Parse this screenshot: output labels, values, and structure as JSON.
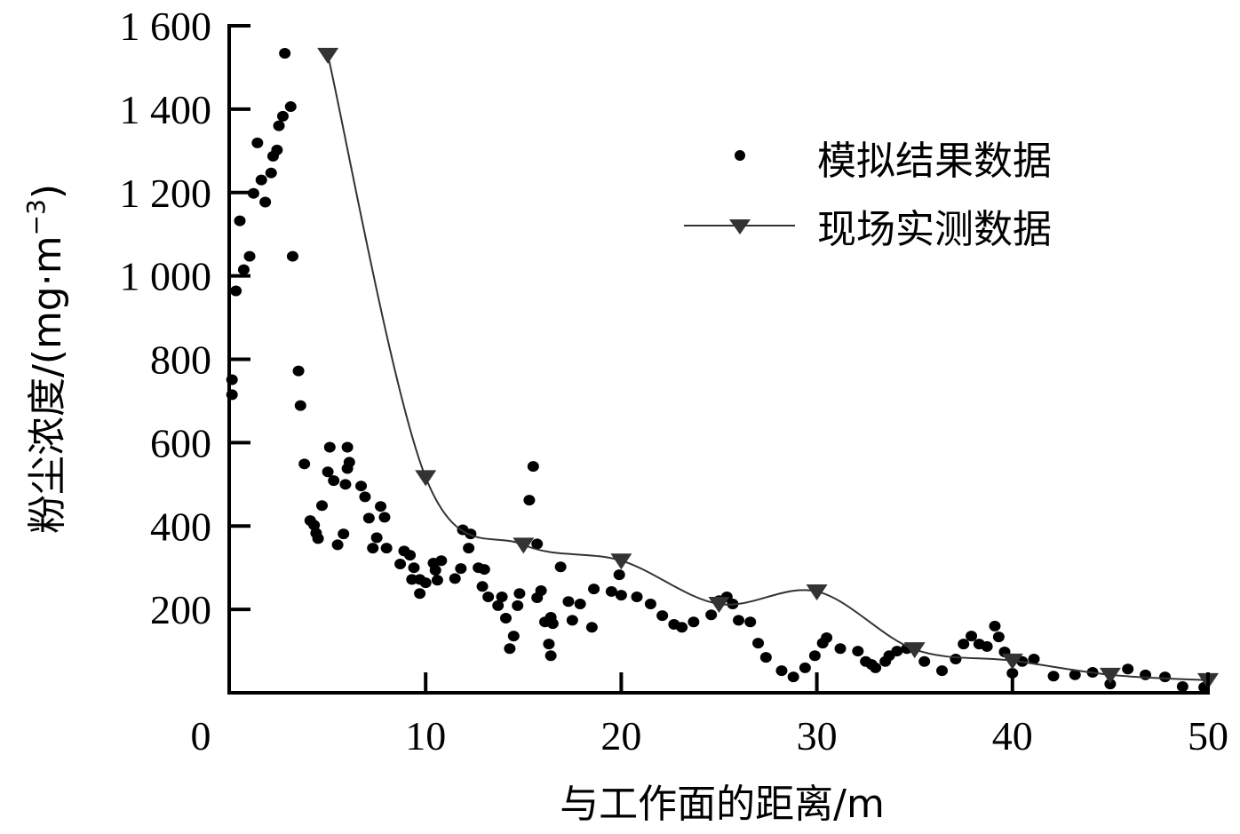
{
  "chart_data": {
    "type": "scatter",
    "title": "",
    "xlabel": "与工作面的距离/m",
    "ylabel": "粉尘浓度/(mg·m⁻³)",
    "xlim": [
      0,
      50
    ],
    "ylim": [
      0,
      1600
    ],
    "xticks": [
      0,
      10,
      20,
      30,
      40,
      50
    ],
    "xtick_labels": [
      "0",
      "10",
      "20",
      "30",
      "40",
      "50"
    ],
    "yticks": [
      200,
      400,
      600,
      800,
      1000,
      1200,
      1400,
      1600
    ],
    "ytick_labels": [
      "200",
      "400",
      "600",
      "800",
      "1 000",
      "1 200",
      "1 400",
      "1 600"
    ],
    "grid": false,
    "legend_position": "upper right",
    "series": [
      {
        "name": "模拟结果数据",
        "style": "scatter",
        "marker": "circle",
        "color": "#000000",
        "points": [
          [
            0.1,
            751
          ],
          [
            0.1,
            715
          ],
          [
            0.3,
            964
          ],
          [
            0.5,
            1132
          ],
          [
            0.7,
            1015
          ],
          [
            1.0,
            1047
          ],
          [
            1.2,
            1198
          ],
          [
            1.4,
            1319
          ],
          [
            1.6,
            1230
          ],
          [
            1.8,
            1177
          ],
          [
            2.1,
            1247
          ],
          [
            2.2,
            1287
          ],
          [
            2.4,
            1302
          ],
          [
            2.5,
            1360
          ],
          [
            2.7,
            1383
          ],
          [
            2.8,
            1534
          ],
          [
            3.1,
            1406
          ],
          [
            3.2,
            1047
          ],
          [
            3.5,
            772
          ],
          [
            3.6,
            689
          ],
          [
            3.8,
            549
          ],
          [
            4.1,
            413
          ],
          [
            4.3,
            402
          ],
          [
            4.4,
            383
          ],
          [
            4.5,
            370
          ],
          [
            4.7,
            449
          ],
          [
            5.0,
            530
          ],
          [
            5.1,
            589
          ],
          [
            5.3,
            509
          ],
          [
            5.5,
            355
          ],
          [
            5.8,
            381
          ],
          [
            5.9,
            500
          ],
          [
            6.0,
            589
          ],
          [
            6.0,
            538
          ],
          [
            6.1,
            553
          ],
          [
            6.7,
            496
          ],
          [
            6.9,
            470
          ],
          [
            7.1,
            419
          ],
          [
            7.3,
            347
          ],
          [
            7.5,
            372
          ],
          [
            7.7,
            447
          ],
          [
            7.9,
            421
          ],
          [
            8.0,
            347
          ],
          [
            8.7,
            309
          ],
          [
            8.9,
            340
          ],
          [
            9.2,
            330
          ],
          [
            9.3,
            272
          ],
          [
            9.4,
            300
          ],
          [
            9.7,
            272
          ],
          [
            9.7,
            238
          ],
          [
            10.0,
            264
          ],
          [
            10.4,
            311
          ],
          [
            10.5,
            294
          ],
          [
            10.6,
            270
          ],
          [
            10.8,
            317
          ],
          [
            11.5,
            274
          ],
          [
            11.8,
            298
          ],
          [
            11.9,
            391
          ],
          [
            12.2,
            347
          ],
          [
            12.3,
            381
          ],
          [
            12.7,
            300
          ],
          [
            12.9,
            255
          ],
          [
            13.0,
            296
          ],
          [
            13.2,
            230
          ],
          [
            13.7,
            209
          ],
          [
            13.9,
            230
          ],
          [
            14.1,
            179
          ],
          [
            14.3,
            106
          ],
          [
            14.5,
            136
          ],
          [
            14.7,
            209
          ],
          [
            14.8,
            238
          ],
          [
            15.3,
            462
          ],
          [
            15.5,
            543
          ],
          [
            15.7,
            357
          ],
          [
            15.7,
            228
          ],
          [
            15.9,
            245
          ],
          [
            16.1,
            170
          ],
          [
            16.3,
            117
          ],
          [
            16.4,
            89
          ],
          [
            16.4,
            181
          ],
          [
            16.5,
            166
          ],
          [
            16.9,
            302
          ],
          [
            17.3,
            219
          ],
          [
            17.5,
            174
          ],
          [
            17.9,
            213
          ],
          [
            18.5,
            157
          ],
          [
            18.6,
            249
          ],
          [
            19.5,
            243
          ],
          [
            19.9,
            283
          ],
          [
            20.0,
            234
          ],
          [
            20.8,
            230
          ],
          [
            21.5,
            213
          ],
          [
            22.1,
            185
          ],
          [
            22.7,
            164
          ],
          [
            23.1,
            157
          ],
          [
            23.7,
            170
          ],
          [
            24.6,
            187
          ],
          [
            25.0,
            221
          ],
          [
            25.4,
            230
          ],
          [
            25.7,
            213
          ],
          [
            26.0,
            174
          ],
          [
            26.6,
            170
          ],
          [
            27.0,
            119
          ],
          [
            27.4,
            85
          ],
          [
            28.2,
            53
          ],
          [
            28.8,
            38
          ],
          [
            29.4,
            60
          ],
          [
            29.9,
            89
          ],
          [
            30.3,
            119
          ],
          [
            30.5,
            132
          ],
          [
            31.2,
            106
          ],
          [
            32.1,
            100
          ],
          [
            32.5,
            75
          ],
          [
            32.8,
            68
          ],
          [
            33.0,
            60
          ],
          [
            33.5,
            75
          ],
          [
            33.7,
            89
          ],
          [
            34.1,
            100
          ],
          [
            34.6,
            106
          ],
          [
            35.5,
            75
          ],
          [
            36.4,
            53
          ],
          [
            37.1,
            81
          ],
          [
            37.5,
            117
          ],
          [
            37.9,
            136
          ],
          [
            38.3,
            117
          ],
          [
            38.7,
            111
          ],
          [
            39.1,
            160
          ],
          [
            39.3,
            134
          ],
          [
            39.6,
            98
          ],
          [
            40.0,
            47
          ],
          [
            40.5,
            75
          ],
          [
            41.1,
            81
          ],
          [
            42.1,
            40
          ],
          [
            43.2,
            43
          ],
          [
            44.1,
            49
          ],
          [
            45.0,
            21
          ],
          [
            45.9,
            57
          ],
          [
            46.8,
            43
          ],
          [
            47.8,
            38
          ],
          [
            48.7,
            15
          ],
          [
            49.8,
            13
          ]
        ]
      },
      {
        "name": "现场实测数据",
        "style": "line+marker",
        "marker": "triangle-down",
        "color": "#333333",
        "x": [
          5,
          10,
          15,
          20,
          25,
          30,
          35,
          40,
          45,
          50
        ],
        "values": [
          1530,
          517,
          355,
          317,
          213,
          243,
          104,
          77,
          43,
          30
        ]
      }
    ]
  },
  "legend": {
    "items": [
      {
        "label": "模拟结果数据",
        "marker": "circle"
      },
      {
        "label": "现场实测数据",
        "marker": "line-triangle-down"
      }
    ]
  },
  "axes": {
    "y_title_main": "粉尘浓度/(mg·m",
    "y_title_sup": "−3",
    "y_title_close": ")",
    "x_title": "与工作面的距离/m"
  }
}
